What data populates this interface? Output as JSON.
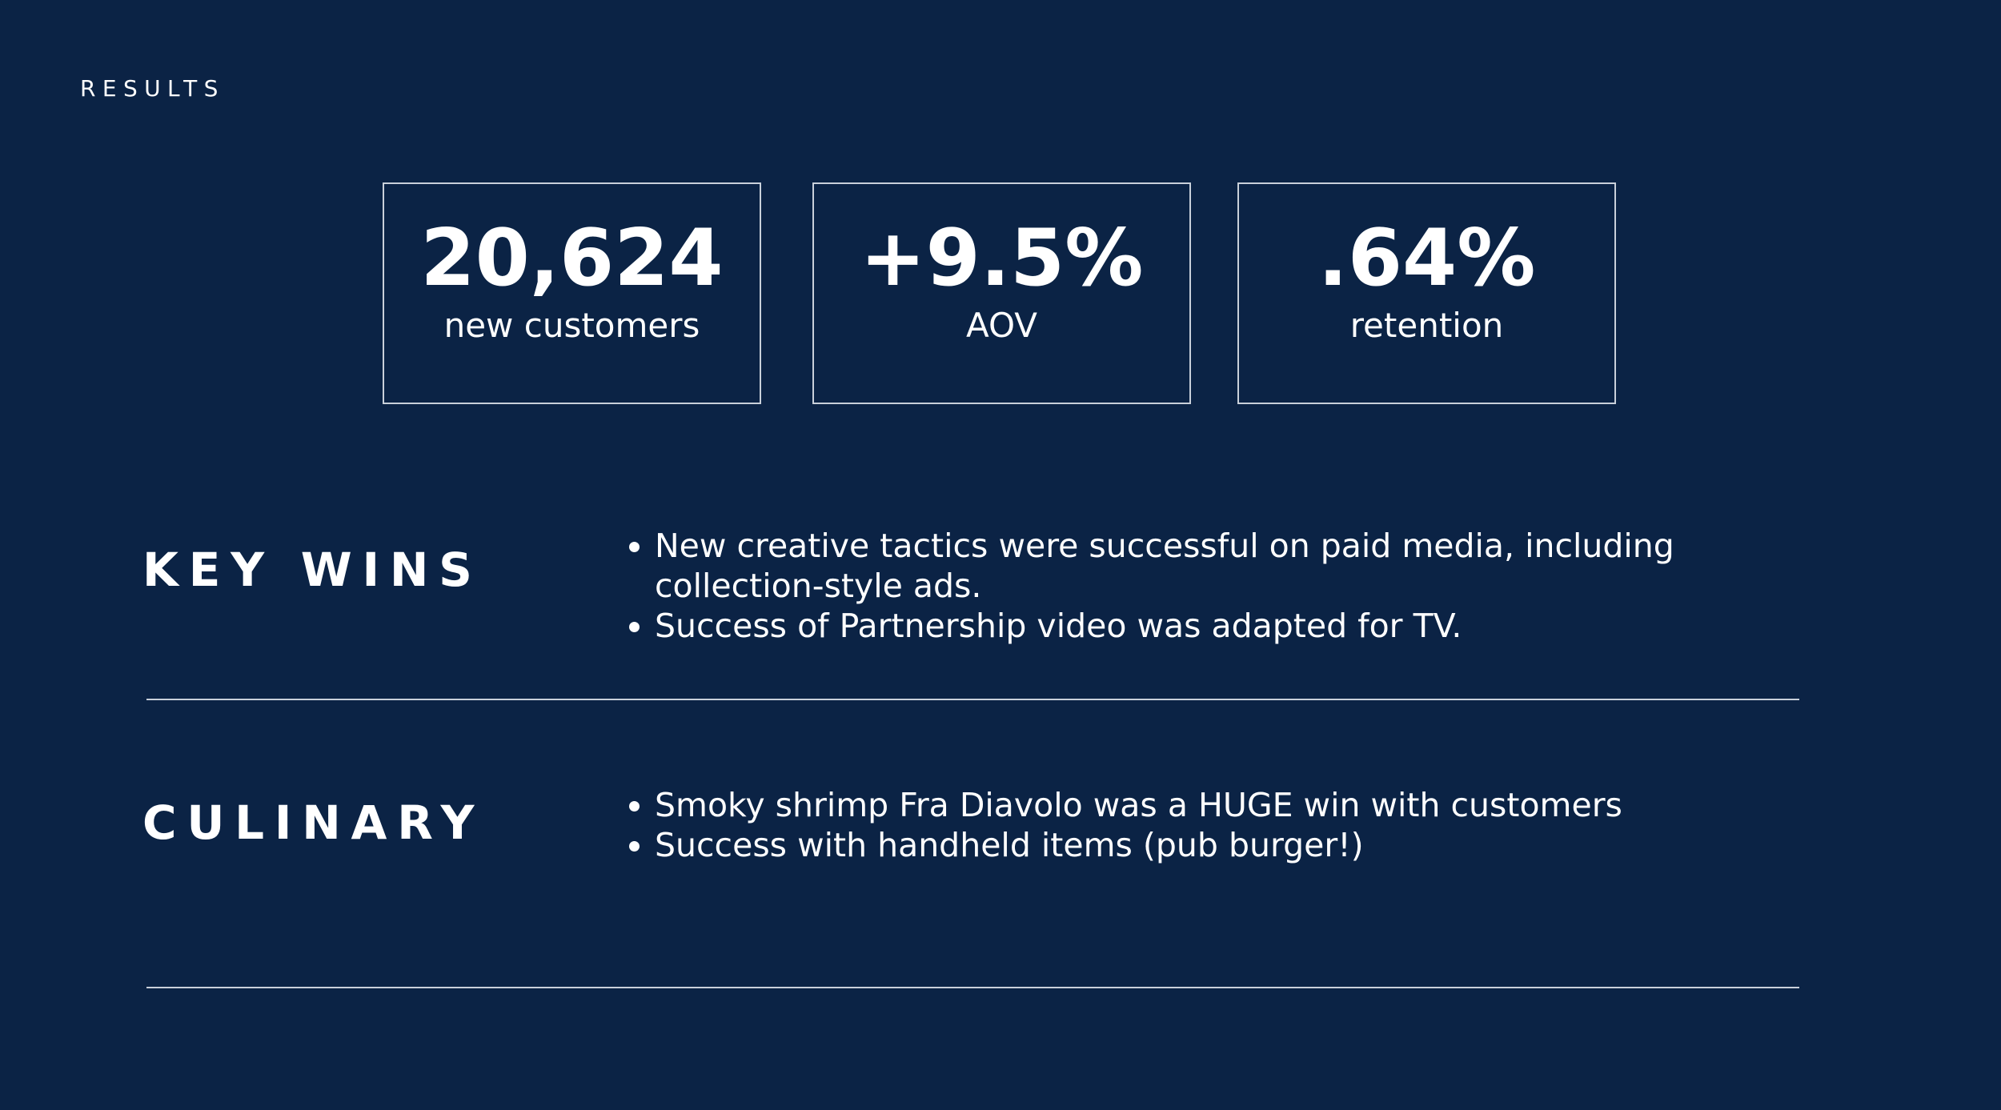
{
  "header": {
    "title": "RESULTS"
  },
  "stats": [
    {
      "value": "20,624",
      "label": "new customers"
    },
    {
      "value": "+9.5%",
      "label": "AOV"
    },
    {
      "value": ".64%",
      "label": "retention"
    }
  ],
  "sections": [
    {
      "title": "KEY WINS",
      "bullets": [
        "New creative tactics were successful on paid media, including collection-style ads.",
        "Success of Partnership video was adapted for TV."
      ]
    },
    {
      "title": "CULINARY",
      "bullets": [
        "Smoky shrimp Fra Diavolo was a HUGE win with customers",
        "Success with handheld items (pub burger!)"
      ]
    }
  ]
}
